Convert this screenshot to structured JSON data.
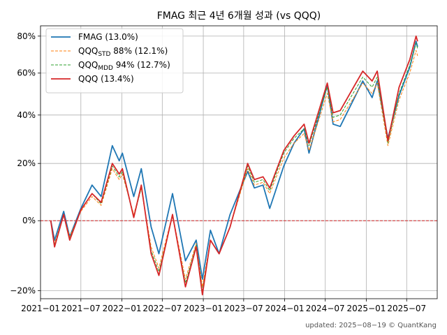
{
  "chart_data": {
    "type": "line",
    "title": "FMAG 최근 4년 6개월 성과 (vs QQQ)",
    "xlabel": "",
    "ylabel": "",
    "y_scale": "log (1 + return)",
    "ylim": [
      -0.22,
      0.86
    ],
    "xlim": [
      "2021-01-01",
      "2025-11-15"
    ],
    "grid": true,
    "legend_position": "top-left",
    "zero_line": {
      "value": 0,
      "color": "#d62728",
      "style": "dashed"
    },
    "y_ticks": [
      {
        "value": -0.2,
        "label": "−20%"
      },
      {
        "value": 0.0,
        "label": "0%"
      },
      {
        "value": 0.2,
        "label": "20%"
      },
      {
        "value": 0.4,
        "label": "40%"
      },
      {
        "value": 0.6,
        "label": "60%"
      },
      {
        "value": 0.8,
        "label": "80%"
      }
    ],
    "x_ticks": [
      {
        "value": "2021-01-01",
        "label": "2021−01"
      },
      {
        "value": "2021-07-01",
        "label": "2021−07"
      },
      {
        "value": "2022-01-01",
        "label": "2022−01"
      },
      {
        "value": "2022-07-01",
        "label": "2022−07"
      },
      {
        "value": "2023-01-01",
        "label": "2023−01"
      },
      {
        "value": "2023-07-01",
        "label": "2023−07"
      },
      {
        "value": "2024-01-01",
        "label": "2024−01"
      },
      {
        "value": "2024-07-01",
        "label": "2024−07"
      },
      {
        "value": "2025-01-01",
        "label": "2025−01"
      },
      {
        "value": "2025-07-01",
        "label": "2025−07"
      }
    ],
    "series": [
      {
        "name": "FMAG (13.0%)",
        "legend_label": "FMAG (13.0%)",
        "color": "#1f77b4",
        "style": "solid",
        "points": [
          [
            "2021-02-16",
            0.0
          ],
          [
            "2021-03-05",
            -0.06
          ],
          [
            "2021-04-15",
            0.03
          ],
          [
            "2021-05-12",
            -0.05
          ],
          [
            "2021-07-01",
            0.04
          ],
          [
            "2021-08-20",
            0.12
          ],
          [
            "2021-09-30",
            0.08
          ],
          [
            "2021-11-19",
            0.27
          ],
          [
            "2021-12-20",
            0.21
          ],
          [
            "2022-01-03",
            0.24
          ],
          [
            "2022-02-23",
            0.08
          ],
          [
            "2022-03-29",
            0.18
          ],
          [
            "2022-05-12",
            -0.02
          ],
          [
            "2022-06-16",
            -0.1
          ],
          [
            "2022-08-16",
            0.09
          ],
          [
            "2022-10-13",
            -0.12
          ],
          [
            "2022-11-30",
            -0.06
          ],
          [
            "2022-12-28",
            -0.17
          ],
          [
            "2023-02-02",
            -0.03
          ],
          [
            "2023-03-13",
            -0.1
          ],
          [
            "2023-05-01",
            0.02
          ],
          [
            "2023-07-19",
            0.17
          ],
          [
            "2023-08-18",
            0.11
          ],
          [
            "2023-09-26",
            0.12
          ],
          [
            "2023-10-26",
            0.04
          ],
          [
            "2023-12-28",
            0.19
          ],
          [
            "2024-02-12",
            0.28
          ],
          [
            "2024-03-28",
            0.34
          ],
          [
            "2024-04-19",
            0.24
          ],
          [
            "2024-07-10",
            0.54
          ],
          [
            "2024-08-05",
            0.36
          ],
          [
            "2024-09-06",
            0.35
          ],
          [
            "2024-12-16",
            0.56
          ],
          [
            "2025-01-27",
            0.48
          ],
          [
            "2025-02-19",
            0.56
          ],
          [
            "2025-04-08",
            0.3
          ],
          [
            "2025-05-28",
            0.49
          ],
          [
            "2025-07-15",
            0.63
          ],
          [
            "2025-08-12",
            0.77
          ],
          [
            "2025-08-19",
            0.74
          ]
        ]
      },
      {
        "name": "QQQ STD 88% (12.1%)",
        "legend_label": "QQQ",
        "legend_sub": "STD",
        "legend_suffix": " 88% (12.1%)",
        "color": "#ff7f0e",
        "style": "dashed",
        "points": [
          [
            "2021-02-16",
            0.0
          ],
          [
            "2021-03-05",
            -0.07
          ],
          [
            "2021-04-15",
            0.02
          ],
          [
            "2021-05-12",
            -0.05
          ],
          [
            "2021-07-01",
            0.03
          ],
          [
            "2021-08-20",
            0.08
          ],
          [
            "2021-09-30",
            0.05
          ],
          [
            "2021-11-19",
            0.18
          ],
          [
            "2021-12-20",
            0.14
          ],
          [
            "2022-01-03",
            0.16
          ],
          [
            "2022-02-23",
            0.02
          ],
          [
            "2022-03-29",
            0.11
          ],
          [
            "2022-05-12",
            -0.08
          ],
          [
            "2022-06-16",
            -0.14
          ],
          [
            "2022-08-16",
            0.02
          ],
          [
            "2022-10-13",
            -0.17
          ],
          [
            "2022-11-30",
            -0.07
          ],
          [
            "2022-12-28",
            -0.19
          ],
          [
            "2023-02-02",
            -0.06
          ],
          [
            "2023-03-13",
            -0.1
          ],
          [
            "2023-05-01",
            -0.02
          ],
          [
            "2023-07-19",
            0.18
          ],
          [
            "2023-08-18",
            0.12
          ],
          [
            "2023-09-26",
            0.13
          ],
          [
            "2023-10-26",
            0.09
          ],
          [
            "2023-12-28",
            0.22
          ],
          [
            "2024-02-12",
            0.28
          ],
          [
            "2024-03-28",
            0.32
          ],
          [
            "2024-04-19",
            0.25
          ],
          [
            "2024-07-10",
            0.5
          ],
          [
            "2024-08-05",
            0.37
          ],
          [
            "2024-09-06",
            0.38
          ],
          [
            "2024-12-16",
            0.55
          ],
          [
            "2025-01-27",
            0.5
          ],
          [
            "2025-02-19",
            0.55
          ],
          [
            "2025-04-08",
            0.27
          ],
          [
            "2025-05-28",
            0.47
          ],
          [
            "2025-07-15",
            0.6
          ],
          [
            "2025-08-12",
            0.72
          ],
          [
            "2025-08-19",
            0.69
          ]
        ]
      },
      {
        "name": "QQQ MDD 94% (12.7%)",
        "legend_label": "QQQ",
        "legend_sub": "MDD",
        "legend_suffix": " 94% (12.7%)",
        "color": "#2ca02c",
        "style": "dashed",
        "points": [
          [
            "2021-02-16",
            0.0
          ],
          [
            "2021-03-05",
            -0.075
          ],
          [
            "2021-04-15",
            0.02
          ],
          [
            "2021-05-12",
            -0.055
          ],
          [
            "2021-07-01",
            0.035
          ],
          [
            "2021-08-20",
            0.09
          ],
          [
            "2021-09-30",
            0.055
          ],
          [
            "2021-11-19",
            0.19
          ],
          [
            "2021-12-20",
            0.15
          ],
          [
            "2022-01-03",
            0.17
          ],
          [
            "2022-02-23",
            0.01
          ],
          [
            "2022-03-29",
            0.11
          ],
          [
            "2022-05-12",
            -0.09
          ],
          [
            "2022-06-16",
            -0.15
          ],
          [
            "2022-08-16",
            0.015
          ],
          [
            "2022-10-13",
            -0.18
          ],
          [
            "2022-11-30",
            -0.075
          ],
          [
            "2022-12-28",
            -0.2
          ],
          [
            "2023-02-02",
            -0.06
          ],
          [
            "2023-03-13",
            -0.1
          ],
          [
            "2023-05-01",
            -0.02
          ],
          [
            "2023-07-19",
            0.19
          ],
          [
            "2023-08-18",
            0.13
          ],
          [
            "2023-09-26",
            0.14
          ],
          [
            "2023-10-26",
            0.1
          ],
          [
            "2023-12-28",
            0.24
          ],
          [
            "2024-02-12",
            0.3
          ],
          [
            "2024-03-28",
            0.34
          ],
          [
            "2024-04-19",
            0.27
          ],
          [
            "2024-07-10",
            0.53
          ],
          [
            "2024-08-05",
            0.39
          ],
          [
            "2024-09-06",
            0.4
          ],
          [
            "2024-12-16",
            0.58
          ],
          [
            "2025-01-27",
            0.53
          ],
          [
            "2025-02-19",
            0.58
          ],
          [
            "2025-04-08",
            0.28
          ],
          [
            "2025-05-28",
            0.5
          ],
          [
            "2025-07-15",
            0.64
          ],
          [
            "2025-08-12",
            0.76
          ],
          [
            "2025-08-19",
            0.73
          ]
        ]
      },
      {
        "name": "QQQ (13.4%)",
        "legend_label": "QQQ (13.4%)",
        "color": "#d62728",
        "style": "solid",
        "points": [
          [
            "2021-02-16",
            0.0
          ],
          [
            "2021-03-05",
            -0.08
          ],
          [
            "2021-04-15",
            0.02
          ],
          [
            "2021-05-12",
            -0.06
          ],
          [
            "2021-07-01",
            0.035
          ],
          [
            "2021-08-20",
            0.09
          ],
          [
            "2021-09-30",
            0.06
          ],
          [
            "2021-11-19",
            0.2
          ],
          [
            "2021-12-20",
            0.16
          ],
          [
            "2022-01-03",
            0.18
          ],
          [
            "2022-02-23",
            0.01
          ],
          [
            "2022-03-29",
            0.12
          ],
          [
            "2022-05-12",
            -0.1
          ],
          [
            "2022-06-16",
            -0.16
          ],
          [
            "2022-08-16",
            0.02
          ],
          [
            "2022-10-13",
            -0.19
          ],
          [
            "2022-11-30",
            -0.08
          ],
          [
            "2022-12-28",
            -0.21
          ],
          [
            "2023-02-02",
            -0.06
          ],
          [
            "2023-03-13",
            -0.1
          ],
          [
            "2023-05-01",
            -0.02
          ],
          [
            "2023-07-19",
            0.2
          ],
          [
            "2023-08-18",
            0.14
          ],
          [
            "2023-09-26",
            0.15
          ],
          [
            "2023-10-26",
            0.11
          ],
          [
            "2023-12-28",
            0.25
          ],
          [
            "2024-02-12",
            0.31
          ],
          [
            "2024-03-28",
            0.36
          ],
          [
            "2024-04-19",
            0.28
          ],
          [
            "2024-07-10",
            0.55
          ],
          [
            "2024-08-05",
            0.41
          ],
          [
            "2024-09-06",
            0.42
          ],
          [
            "2024-12-16",
            0.61
          ],
          [
            "2025-01-27",
            0.56
          ],
          [
            "2025-02-19",
            0.61
          ],
          [
            "2025-04-08",
            0.29
          ],
          [
            "2025-05-28",
            0.53
          ],
          [
            "2025-07-15",
            0.67
          ],
          [
            "2025-08-12",
            0.8
          ],
          [
            "2025-08-19",
            0.77
          ]
        ]
      }
    ]
  },
  "footer": {
    "text": "updated: 2025−08−19 © QuantKang"
  }
}
